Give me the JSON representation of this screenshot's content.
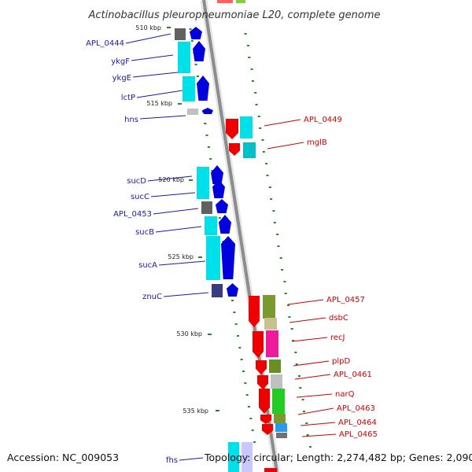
{
  "title": "Actinobacillus pleuropneumoniae L20, complete genome",
  "footer": {
    "accession": "Accession: NC_009053",
    "topology": "Topology: circular; Length: 2,274,482 bp; Genes: 2,090"
  },
  "ticks": [
    "510 kbp",
    "515 kbp",
    "520 kbp",
    "525 kbp",
    "530 kbp",
    "535 kbp"
  ],
  "genes_left": [
    "APL_0444",
    "ykgF",
    "ykgE",
    "lctP",
    "hns",
    "sucD",
    "sucC",
    "APL_0453",
    "sucB",
    "sucA",
    "znuC",
    "fhs"
  ],
  "genes_right": [
    "APL_0449",
    "mglB",
    "APL_0457",
    "dsbC",
    "recJ",
    "plpD",
    "APL_0461",
    "narQ",
    "APL_0463",
    "APL_0464",
    "APL_0465"
  ],
  "colors": {
    "backbone": "#909090",
    "forward_arrow": "#0000dd",
    "reverse_arrow": "#ee0000",
    "left_label": "#1a1aa6",
    "right_label": "#cc0000",
    "cyan_block": "#00e0e8",
    "gc_dots": "#228b22"
  }
}
